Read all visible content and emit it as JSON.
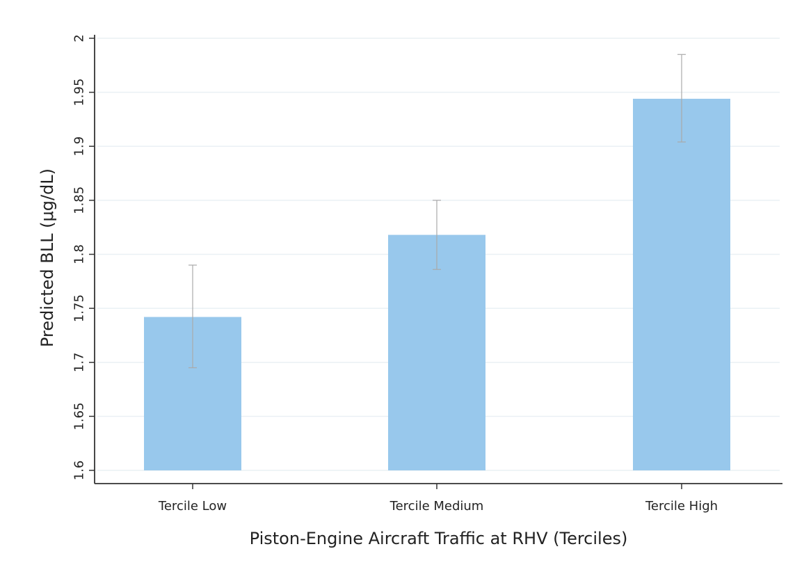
{
  "chart_data": {
    "type": "bar",
    "categories": [
      "Tercile Low",
      "Tercile Medium",
      "Tercile High"
    ],
    "values": [
      1.742,
      1.818,
      1.944
    ],
    "error_bars": {
      "lower": [
        1.695,
        1.786,
        1.904
      ],
      "upper": [
        1.79,
        1.85,
        1.985
      ]
    },
    "title": "",
    "xlabel": "Piston-Engine Aircraft Traffic at RHV (Terciles)",
    "ylabel": "Predicted BLL (μg/dL)",
    "ylim": [
      1.6,
      2.0
    ],
    "yticks": [
      "1.6",
      "1.65",
      "1.7",
      "1.75",
      "1.8",
      "1.85",
      "1.9",
      "1.95",
      "2"
    ],
    "grid": true,
    "legend": "none",
    "colors": {
      "bar": "#98c8ec",
      "error_bar": "#aaaaaa",
      "axis": "#333333",
      "grid": "#eaf0f4"
    }
  }
}
